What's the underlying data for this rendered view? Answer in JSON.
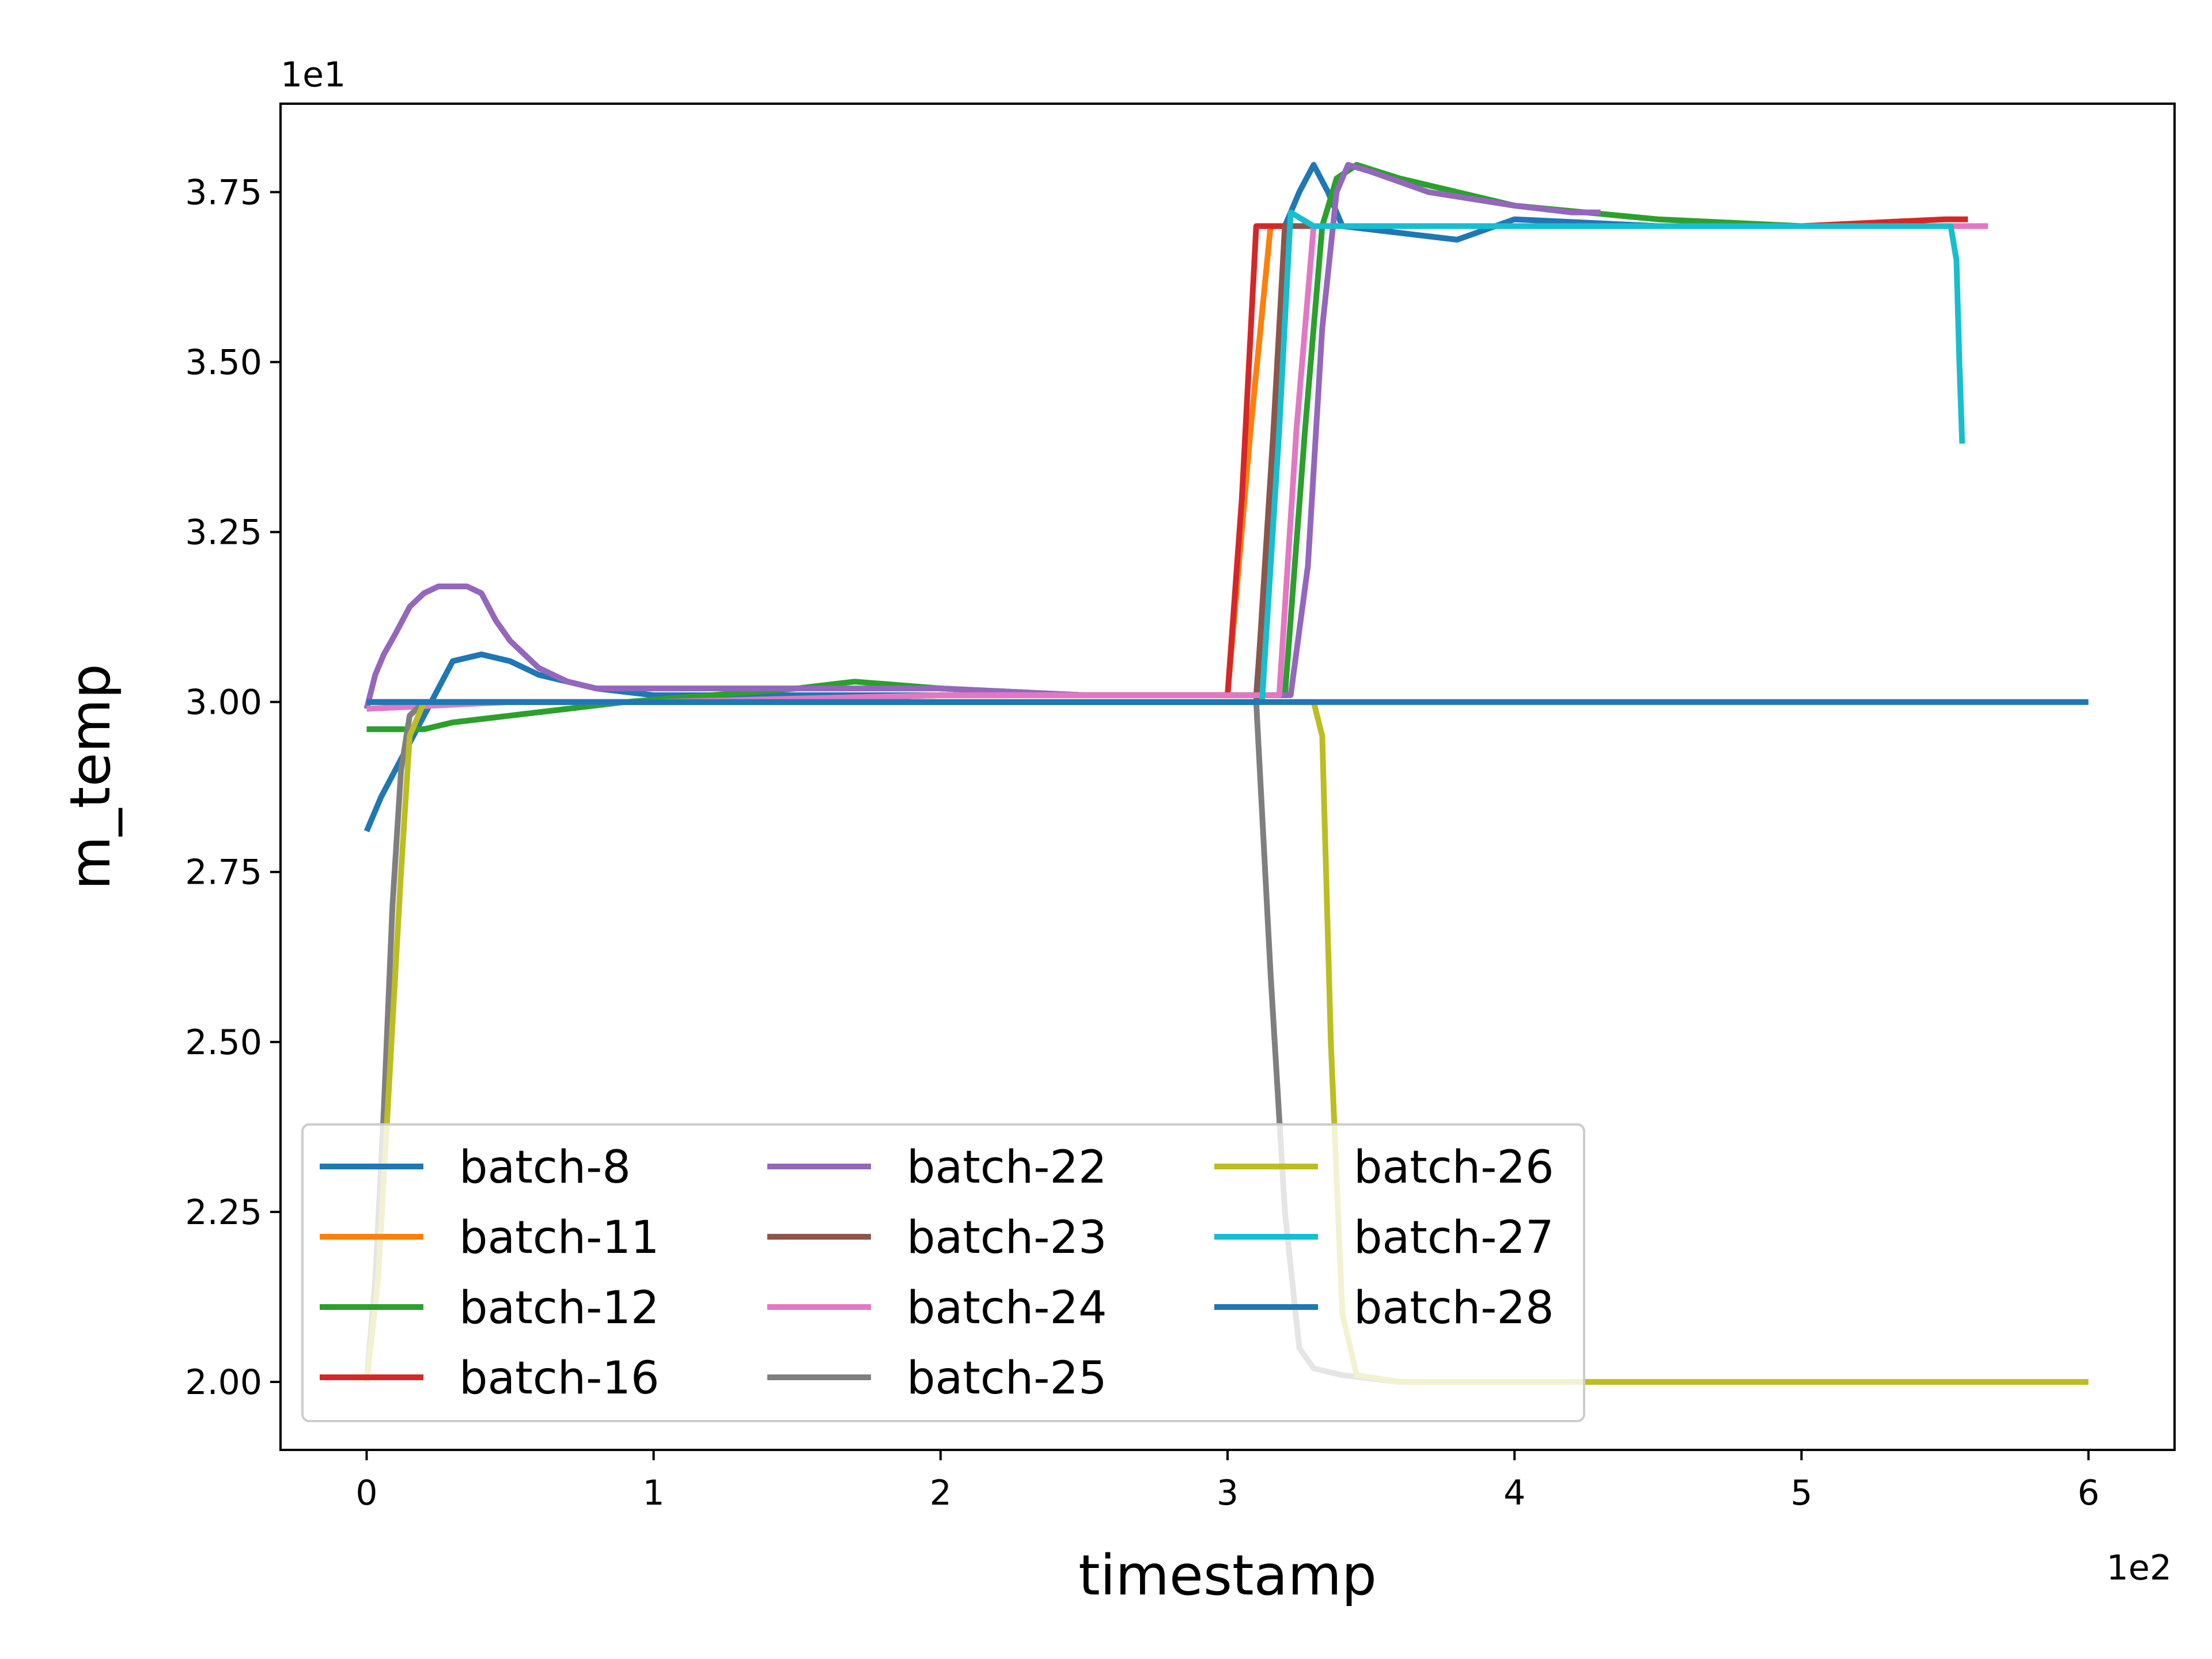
{
  "chart_data": {
    "type": "line",
    "title": "",
    "xlabel": "timestamp",
    "ylabel": "m_temp",
    "x_offset_text": "1e2",
    "y_offset_text": "1e1",
    "xlim": [
      -30,
      630
    ],
    "ylim": [
      19.0,
      38.8
    ],
    "xticks": [
      0,
      100,
      200,
      300,
      400,
      500,
      600
    ],
    "xtick_labels": [
      "0",
      "1",
      "2",
      "3",
      "4",
      "5",
      "6"
    ],
    "yticks": [
      20.0,
      22.5,
      25.0,
      27.5,
      30.0,
      32.5,
      35.0,
      37.5
    ],
    "ytick_labels": [
      "2.00",
      "2.25",
      "2.50",
      "2.75",
      "3.00",
      "3.25",
      "3.50",
      "3.75"
    ],
    "grid": false,
    "legend": {
      "placement": "lower-left",
      "columns": 3
    },
    "series": [
      {
        "name": "batch-8",
        "color": "#1f77b4",
        "points": [
          [
            0,
            28.1
          ],
          [
            5,
            28.6
          ],
          [
            10,
            29.0
          ],
          [
            15,
            29.4
          ],
          [
            20,
            29.8
          ],
          [
            25,
            30.2
          ],
          [
            30,
            30.6
          ],
          [
            40,
            30.7
          ],
          [
            50,
            30.6
          ],
          [
            60,
            30.4
          ],
          [
            80,
            30.2
          ],
          [
            100,
            30.1
          ],
          [
            150,
            30.1
          ],
          [
            200,
            30.1
          ],
          [
            250,
            30.1
          ],
          [
            300,
            30.1
          ],
          [
            310,
            30.1
          ],
          [
            315,
            33.0
          ],
          [
            320,
            37.0
          ],
          [
            325,
            37.5
          ],
          [
            330,
            37.9
          ],
          [
            335,
            37.5
          ],
          [
            340,
            37.0
          ],
          [
            360,
            36.9
          ],
          [
            380,
            36.8
          ],
          [
            400,
            37.1
          ],
          [
            450,
            37.0
          ],
          [
            500,
            37.0
          ],
          [
            550,
            37.0
          ],
          [
            555,
            37.0
          ]
        ]
      },
      {
        "name": "batch-11",
        "color": "#ff7f0e",
        "points": [
          [
            0,
            30.0
          ],
          [
            50,
            30.0
          ],
          [
            100,
            30.0
          ],
          [
            200,
            30.1
          ],
          [
            300,
            30.1
          ],
          [
            308,
            34.0
          ],
          [
            315,
            37.0
          ],
          [
            350,
            37.0
          ],
          [
            400,
            37.0
          ],
          [
            450,
            37.0
          ],
          [
            500,
            37.0
          ],
          [
            555,
            37.0
          ]
        ]
      },
      {
        "name": "batch-12",
        "color": "#2ca02c",
        "points": [
          [
            0,
            29.6
          ],
          [
            10,
            29.6
          ],
          [
            20,
            29.6
          ],
          [
            30,
            29.7
          ],
          [
            50,
            29.8
          ],
          [
            70,
            29.9
          ],
          [
            90,
            30.0
          ],
          [
            150,
            30.2
          ],
          [
            170,
            30.3
          ],
          [
            200,
            30.2
          ],
          [
            250,
            30.1
          ],
          [
            300,
            30.1
          ],
          [
            320,
            30.1
          ],
          [
            327,
            34.0
          ],
          [
            333,
            37.0
          ],
          [
            338,
            37.7
          ],
          [
            345,
            37.9
          ],
          [
            360,
            37.7
          ],
          [
            380,
            37.5
          ],
          [
            400,
            37.3
          ],
          [
            450,
            37.1
          ],
          [
            500,
            37.0
          ],
          [
            555,
            37.0
          ]
        ]
      },
      {
        "name": "batch-16",
        "color": "#d62728",
        "points": [
          [
            0,
            30.0
          ],
          [
            100,
            30.0
          ],
          [
            200,
            30.1
          ],
          [
            300,
            30.1
          ],
          [
            305,
            33.0
          ],
          [
            310,
            37.0
          ],
          [
            350,
            37.0
          ],
          [
            400,
            37.0
          ],
          [
            450,
            37.0
          ],
          [
            500,
            37.0
          ],
          [
            550,
            37.1
          ],
          [
            558,
            37.1
          ]
        ]
      },
      {
        "name": "batch-22",
        "color": "#9467bd",
        "points": [
          [
            0,
            29.9
          ],
          [
            3,
            30.4
          ],
          [
            6,
            30.7
          ],
          [
            10,
            31.0
          ],
          [
            15,
            31.4
          ],
          [
            20,
            31.6
          ],
          [
            25,
            31.7
          ],
          [
            30,
            31.7
          ],
          [
            35,
            31.7
          ],
          [
            40,
            31.6
          ],
          [
            45,
            31.2
          ],
          [
            50,
            30.9
          ],
          [
            60,
            30.5
          ],
          [
            70,
            30.3
          ],
          [
            80,
            30.2
          ],
          [
            100,
            30.2
          ],
          [
            150,
            30.2
          ],
          [
            200,
            30.2
          ],
          [
            250,
            30.1
          ],
          [
            300,
            30.1
          ],
          [
            322,
            30.1
          ],
          [
            328,
            32.0
          ],
          [
            333,
            35.5
          ],
          [
            338,
            37.5
          ],
          [
            342,
            37.9
          ],
          [
            350,
            37.8
          ],
          [
            370,
            37.5
          ],
          [
            400,
            37.3
          ],
          [
            420,
            37.2
          ],
          [
            430,
            37.2
          ]
        ]
      },
      {
        "name": "batch-23",
        "color": "#8c564b",
        "points": [
          [
            0,
            30.0
          ],
          [
            100,
            30.0
          ],
          [
            200,
            30.0
          ],
          [
            300,
            30.0
          ],
          [
            310,
            30.0
          ],
          [
            316,
            34.0
          ],
          [
            320,
            37.0
          ],
          [
            400,
            37.0
          ],
          [
            450,
            37.0
          ],
          [
            500,
            37.0
          ],
          [
            555,
            37.0
          ]
        ]
      },
      {
        "name": "batch-24",
        "color": "#e377c2",
        "points": [
          [
            0,
            29.9
          ],
          [
            50,
            30.0
          ],
          [
            100,
            30.0
          ],
          [
            200,
            30.1
          ],
          [
            300,
            30.1
          ],
          [
            318,
            30.1
          ],
          [
            324,
            34.0
          ],
          [
            330,
            37.0
          ],
          [
            400,
            37.0
          ],
          [
            500,
            37.0
          ],
          [
            550,
            37.0
          ],
          [
            565,
            37.0
          ]
        ]
      },
      {
        "name": "batch-25",
        "color": "#7f7f7f",
        "points": [
          [
            0,
            20.0
          ],
          [
            3,
            21.5
          ],
          [
            6,
            24.0
          ],
          [
            9,
            27.0
          ],
          [
            12,
            29.0
          ],
          [
            15,
            29.8
          ],
          [
            20,
            30.0
          ],
          [
            100,
            30.0
          ],
          [
            200,
            30.0
          ],
          [
            300,
            30.0
          ],
          [
            310,
            30.0
          ],
          [
            315,
            26.0
          ],
          [
            320,
            22.5
          ],
          [
            325,
            20.5
          ],
          [
            330,
            20.2
          ],
          [
            340,
            20.1
          ],
          [
            360,
            20.0
          ],
          [
            380,
            20.0
          ],
          [
            400,
            20.0
          ],
          [
            425,
            20.0
          ]
        ]
      },
      {
        "name": "batch-26",
        "color": "#bcbd22",
        "points": [
          [
            0,
            20.0
          ],
          [
            4,
            21.5
          ],
          [
            8,
            24.5
          ],
          [
            12,
            27.5
          ],
          [
            15,
            29.5
          ],
          [
            20,
            30.0
          ],
          [
            100,
            30.0
          ],
          [
            200,
            30.0
          ],
          [
            300,
            30.0
          ],
          [
            330,
            30.0
          ],
          [
            333,
            29.5
          ],
          [
            336,
            25.0
          ],
          [
            340,
            21.0
          ],
          [
            345,
            20.1
          ],
          [
            360,
            20.0
          ],
          [
            400,
            20.0
          ],
          [
            500,
            20.0
          ],
          [
            600,
            20.0
          ]
        ]
      },
      {
        "name": "batch-27",
        "color": "#17becf",
        "points": [
          [
            0,
            30.0
          ],
          [
            100,
            30.0
          ],
          [
            200,
            30.0
          ],
          [
            300,
            30.0
          ],
          [
            312,
            30.0
          ],
          [
            318,
            34.0
          ],
          [
            322,
            37.2
          ],
          [
            330,
            37.0
          ],
          [
            400,
            37.0
          ],
          [
            450,
            37.0
          ],
          [
            500,
            37.0
          ],
          [
            550,
            37.0
          ],
          [
            552,
            37.0
          ],
          [
            554,
            36.5
          ],
          [
            555,
            35.0
          ],
          [
            556,
            33.8
          ]
        ]
      },
      {
        "name": "batch-28",
        "color": "#1f77b4",
        "points": [
          [
            0,
            30.0
          ],
          [
            100,
            30.0
          ],
          [
            200,
            30.0
          ],
          [
            300,
            30.0
          ],
          [
            400,
            30.0
          ],
          [
            500,
            30.0
          ],
          [
            600,
            30.0
          ]
        ]
      }
    ]
  }
}
